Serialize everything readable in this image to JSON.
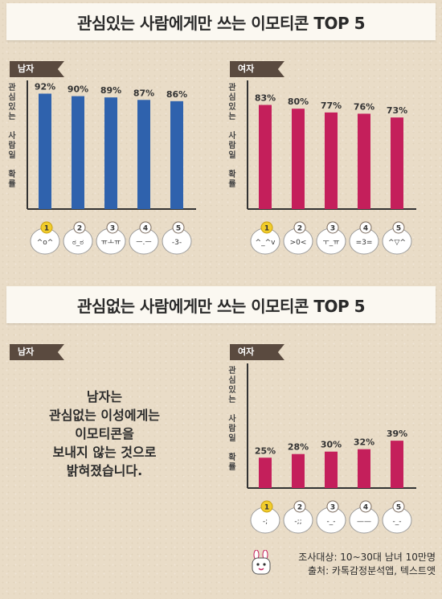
{
  "sections": [
    {
      "title": "관심있는 사람에게만 쓰는 이모티콘 TOP 5"
    },
    {
      "title": "관심없는 사람에게만 쓰는 이모티콘 TOP 5"
    }
  ],
  "labels": {
    "male": "남자",
    "female": "여자",
    "ylabel_lines": [
      "관",
      "심",
      "있",
      "는",
      "",
      "사",
      "람",
      "일",
      "",
      "확",
      "률"
    ]
  },
  "statement": [
    "남자는",
    "관심없는 이성에게는",
    "이모티콘을",
    "보내지 않는 것으로",
    "밝혀졌습니다."
  ],
  "footer": {
    "line1": "조사대상: 10~30대 남녀 10만명",
    "line2": "출처: 카톡감정분석앱, 텍스트앳"
  },
  "colors": {
    "male_bar": "#2f62ad",
    "female_bar": "#c41f5b",
    "rank_badge": "#f2cd2b",
    "tag_bg": "#5a4a3f"
  },
  "chart_data": [
    {
      "type": "bar",
      "title": "관심있는 사람에게만 쓰는 이모티콘 TOP 5",
      "panel": "남자",
      "ylabel": "관심있는 사람일 확률",
      "categories": [
        "^o^",
        "ಠ_ಠ",
        "ㅠㅗㅠ",
        "ㅡ.ㅡ",
        "-3-"
      ],
      "ranks": [
        "1",
        "2",
        "3",
        "4",
        "5"
      ],
      "values": [
        92,
        90,
        89,
        87,
        86
      ],
      "value_labels": [
        "92%",
        "90%",
        "89%",
        "87%",
        "86%"
      ],
      "ylim": [
        0,
        100
      ],
      "color": "#2f62ad"
    },
    {
      "type": "bar",
      "title": "관심있는 사람에게만 쓰는 이모티콘 TOP 5",
      "panel": "여자",
      "ylabel": "관심있는 사람일 확률",
      "categories": [
        "^_^v",
        ">0<",
        "ㅜ_ㅠ",
        "=3=",
        "^▽^"
      ],
      "ranks": [
        "1",
        "2",
        "3",
        "4",
        "5"
      ],
      "values": [
        83,
        80,
        77,
        76,
        73
      ],
      "value_labels": [
        "83%",
        "80%",
        "77%",
        "76%",
        "73%"
      ],
      "ylim": [
        0,
        100
      ],
      "color": "#c41f5b"
    },
    {
      "type": "bar",
      "title": "관심없는 사람에게만 쓰는 이모티콘 TOP 5",
      "panel": "여자",
      "ylabel": "관심있는 사람일 확률",
      "categories": [
        "-;",
        "-;;",
        "-_-",
        "——",
        "-_-"
      ],
      "ranks": [
        "1",
        "2",
        "3",
        "4",
        "5"
      ],
      "values": [
        25,
        28,
        30,
        32,
        39
      ],
      "value_labels": [
        "25%",
        "28%",
        "30%",
        "32%",
        "39%"
      ],
      "ylim": [
        0,
        100
      ],
      "color": "#c41f5b"
    }
  ]
}
